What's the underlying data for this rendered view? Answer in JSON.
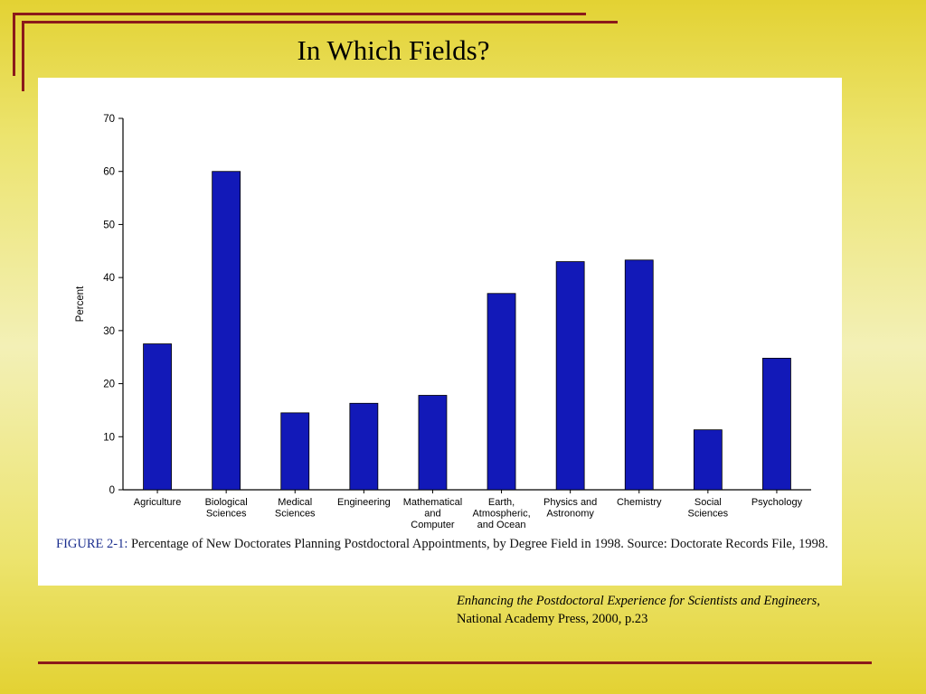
{
  "slide": {
    "title": "In Which Fields?",
    "citation_title": "Enhancing the Postdoctoral Experience for Scientists and Engineers,",
    "citation_publisher": "National Academy Press, 2000, p.23",
    "accent_color": "#8b1a1a",
    "background_color": "#e8dc50"
  },
  "figure": {
    "caption_label": "FIGURE 2-1:",
    "caption_text": "Percentage of New Doctorates Planning Postdoctoral Appointments, by Degree Field in 1998. Source: Doctorate Records File, 1998."
  },
  "chart_data": {
    "type": "bar",
    "categories": [
      [
        "Agriculture"
      ],
      [
        "Biological",
        "Sciences"
      ],
      [
        "Medical",
        "Sciences"
      ],
      [
        "Engineering"
      ],
      [
        "Mathematical",
        "and",
        "Computer"
      ],
      [
        "Earth,",
        "Atmospheric,",
        "and Ocean"
      ],
      [
        "Physics and",
        "Astronomy"
      ],
      [
        "Chemistry"
      ],
      [
        "Social",
        "Sciences"
      ],
      [
        "Psychology"
      ]
    ],
    "values": [
      27.5,
      60,
      14.5,
      16.3,
      17.8,
      37,
      43,
      43.3,
      11.3,
      24.8
    ],
    "ylabel": "Percent",
    "ylim": [
      0,
      70
    ],
    "yticks": [
      0,
      10,
      20,
      30,
      40,
      50,
      60,
      70
    ],
    "bar_color": "#1219b8",
    "grid": false
  }
}
